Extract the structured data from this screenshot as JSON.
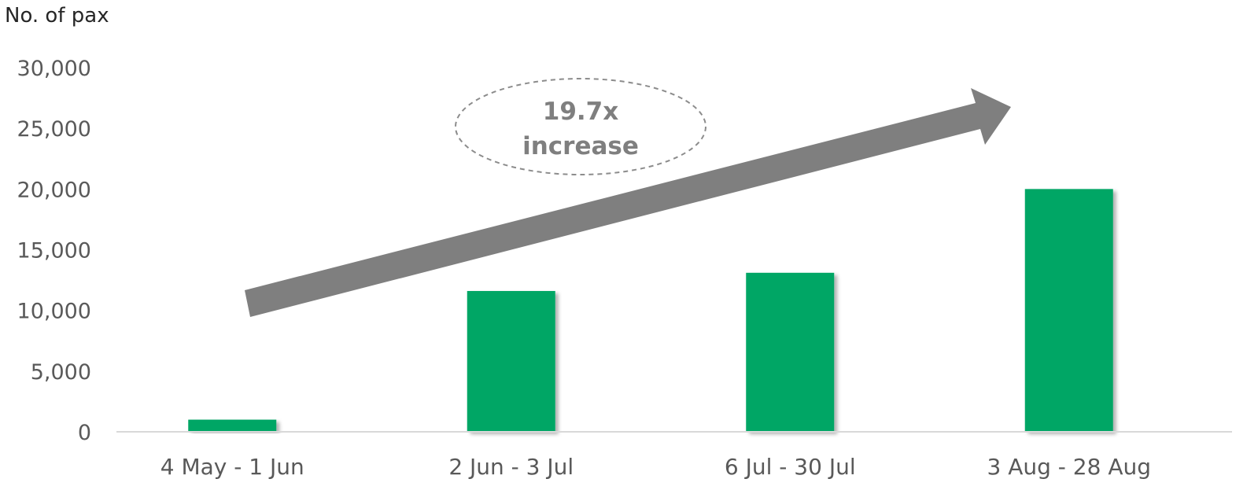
{
  "chart_data": {
    "type": "bar",
    "ylabel": "No. of pax",
    "xlabel": "",
    "title": "",
    "categories": [
      "4 May - 1 Jun",
      "2 Jun - 3 Jul",
      "6 Jul - 30 Jul",
      "3 Aug - 28 Aug"
    ],
    "values": [
      1000,
      11600,
      13100,
      20000
    ],
    "ylim": [
      0,
      30000
    ],
    "yticks": [
      0,
      5000,
      10000,
      15000,
      20000,
      25000,
      30000
    ],
    "ytick_labels": [
      "0",
      "5,000",
      "10,000",
      "15,000",
      "20,000",
      "25,000",
      "30,000"
    ],
    "grid": false,
    "legend": "none",
    "annotation": {
      "line1": "19.7x",
      "line2": "increase"
    }
  },
  "colors": {
    "bar": "#00a665",
    "arrow": "#7f7f7f",
    "axis": "#d9d9d9",
    "text": "#595959"
  }
}
